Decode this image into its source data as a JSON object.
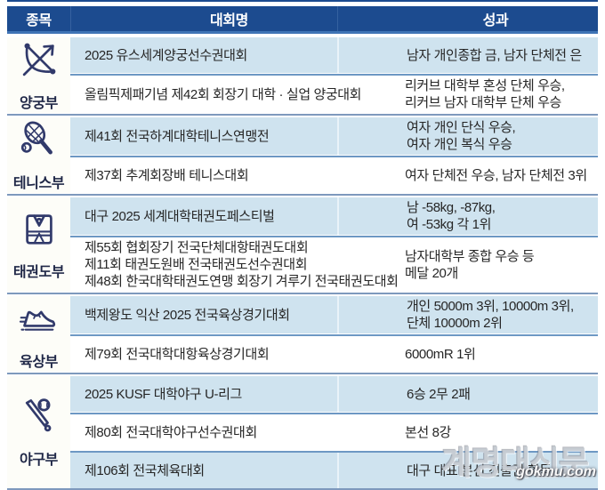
{
  "header": {
    "col_category": "종목",
    "col_competition": "대회명",
    "col_result": "성과"
  },
  "colors": {
    "header_bg": "#1c4b8f",
    "header_accent_strip": "#3f74b5",
    "row_blue_bg": "#cfe3ef",
    "row_white_bg": "#ffffff",
    "group_separator": "#7e99bd",
    "row_separator": "#6d98c4",
    "icon_navy": "#313a6b"
  },
  "groups": [
    {
      "team": "양궁부",
      "icon": "archery-bow-icon",
      "rows": [
        {
          "competition": "2025 유스세계양궁선수권대회",
          "result": "남자 개인종합 금, 남자 단체전 은"
        },
        {
          "competition": "올림픽제패기념 제42회 회장기 대학 · 실업 양궁대회",
          "result": "리커브 대학부 혼성 단체 우승,\n리커브 남자 대학부 단체 우승"
        }
      ]
    },
    {
      "team": "테니스부",
      "icon": "tennis-racket-icon",
      "rows": [
        {
          "competition": "제41회 전국하계대학테니스연맹전",
          "result": "여자 개인 단식 우승,\n여자 개인 복식 우승"
        },
        {
          "competition": "제37회 추계회장배 테니스대회",
          "result": "여자 단체전 우승, 남자 단체전 3위"
        }
      ]
    },
    {
      "team": "태권도부",
      "icon": "taekwondo-uniform-icon",
      "rows": [
        {
          "competition": "대구 2025 세계대학태권도페스티벌",
          "result": "남 -58kg, -87kg,\n여 -53kg 각 1위"
        },
        {
          "competition": "제55회 협회장기 전국단체대항태권도대회\n제11회 태권도원배 전국태권도선수권대회\n제48회 한국대학태권도연맹 회장기 겨루기 전국태권도대회",
          "result": "남자대학부 종합 우승 등\n메달 20개"
        }
      ]
    },
    {
      "team": "육상부",
      "icon": "running-shoe-icon",
      "rows": [
        {
          "competition": "백제왕도 익산 2025 전국육상경기대회",
          "result": "개인 5000m 3위, 10000m 3위,\n단체 10000m 2위"
        },
        {
          "competition": "제79회 전국대학대항육상경기대회",
          "result": "6000mR 1위"
        }
      ]
    },
    {
      "team": "야구부",
      "icon": "baseball-bat-icon",
      "rows": [
        {
          "competition": "2025 KUSF 대학야구 U-리그",
          "result": "6승 2무 2패"
        },
        {
          "competition": "제80회 전국대학야구선수권대회",
          "result": "본선 8강"
        },
        {
          "competition": "제106회 전국체육대회",
          "result": "대구 대표 본선 진출권 획득"
        }
      ]
    }
  ],
  "watermark": {
    "title": "계명대신문",
    "url": "gokmu.com"
  }
}
